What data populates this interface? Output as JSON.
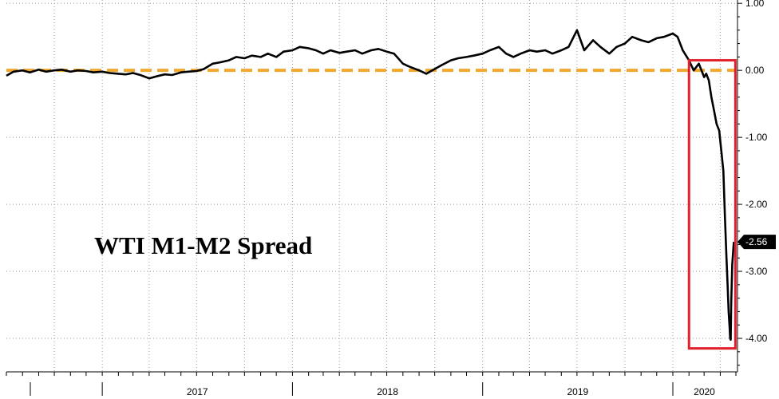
{
  "chart_data": {
    "type": "line",
    "title": "WTI M1-M2 Spread",
    "xlabel": "",
    "ylabel": "",
    "x_tick_labels": [
      "2017",
      "2018",
      "2019",
      "2020"
    ],
    "y_ticks": [
      1.0,
      0.0,
      -1.0,
      -2.0,
      -3.0,
      -4.0
    ],
    "y_tick_labels": [
      "1.00",
      "0.00",
      "-1.00",
      "-2.00",
      "-3.00",
      "-4.00"
    ],
    "ylim": [
      -4.5,
      1.05
    ],
    "xlim": [
      "2016-07",
      "2020-05"
    ],
    "grid": true,
    "last_value_label": "-2.56",
    "reference_line": {
      "y": 0.0,
      "style": "dashed",
      "color": "#f0a830"
    },
    "highlight_box": {
      "x_range": [
        "2020-02",
        "2020-04-30"
      ],
      "y_range": [
        0.15,
        -4.15
      ],
      "color": "#e0202a"
    },
    "series": [
      {
        "color": "#000000",
        "x": [
          "2016-07-01",
          "2016-07-15",
          "2016-08-01",
          "2016-08-15",
          "2016-09-01",
          "2016-09-15",
          "2016-10-01",
          "2016-10-15",
          "2016-11-01",
          "2016-11-15",
          "2016-12-01",
          "2016-12-15",
          "2017-01-01",
          "2017-01-15",
          "2017-02-01",
          "2017-02-15",
          "2017-03-01",
          "2017-03-15",
          "2017-04-01",
          "2017-04-15",
          "2017-05-01",
          "2017-05-15",
          "2017-06-01",
          "2017-06-15",
          "2017-07-01",
          "2017-07-15",
          "2017-08-01",
          "2017-08-15",
          "2017-09-01",
          "2017-09-15",
          "2017-10-01",
          "2017-10-15",
          "2017-11-01",
          "2017-11-15",
          "2017-12-01",
          "2017-12-15",
          "2018-01-01",
          "2018-01-15",
          "2018-02-01",
          "2018-02-15",
          "2018-03-01",
          "2018-03-15",
          "2018-04-01",
          "2018-04-15",
          "2018-05-01",
          "2018-05-15",
          "2018-06-01",
          "2018-06-15",
          "2018-07-01",
          "2018-07-15",
          "2018-08-01",
          "2018-08-15",
          "2018-09-01",
          "2018-09-15",
          "2018-10-01",
          "2018-10-15",
          "2018-11-01",
          "2018-11-15",
          "2018-12-01",
          "2018-12-15",
          "2019-01-01",
          "2019-01-15",
          "2019-02-01",
          "2019-02-15",
          "2019-03-01",
          "2019-03-15",
          "2019-04-01",
          "2019-04-15",
          "2019-05-01",
          "2019-05-15",
          "2019-06-01",
          "2019-06-15",
          "2019-07-01",
          "2019-07-15",
          "2019-08-01",
          "2019-08-15",
          "2019-09-01",
          "2019-09-15",
          "2019-10-01",
          "2019-10-15",
          "2019-11-01",
          "2019-11-15",
          "2019-12-01",
          "2019-12-15",
          "2020-01-01",
          "2020-01-10",
          "2020-01-20",
          "2020-02-01",
          "2020-02-10",
          "2020-02-20",
          "2020-03-01",
          "2020-03-05",
          "2020-03-10",
          "2020-03-15",
          "2020-03-20",
          "2020-03-25",
          "2020-03-30",
          "2020-04-03",
          "2020-04-07",
          "2020-04-10",
          "2020-04-13",
          "2020-04-15",
          "2020-04-17",
          "2020-04-19",
          "2020-04-20",
          "2020-04-21",
          "2020-04-22",
          "2020-04-24",
          "2020-04-27"
        ],
        "y": [
          -0.08,
          -0.02,
          0.0,
          -0.03,
          0.01,
          -0.02,
          0.0,
          0.01,
          -0.02,
          0.0,
          -0.01,
          -0.03,
          -0.02,
          -0.04,
          -0.05,
          -0.06,
          -0.04,
          -0.07,
          -0.12,
          -0.09,
          -0.06,
          -0.07,
          -0.03,
          -0.02,
          -0.01,
          0.02,
          0.1,
          0.12,
          0.15,
          0.2,
          0.18,
          0.22,
          0.2,
          0.25,
          0.2,
          0.28,
          0.3,
          0.35,
          0.33,
          0.3,
          0.25,
          0.3,
          0.26,
          0.28,
          0.3,
          0.25,
          0.3,
          0.32,
          0.28,
          0.25,
          0.1,
          0.05,
          0.0,
          -0.05,
          0.02,
          0.08,
          0.15,
          0.18,
          0.2,
          0.22,
          0.25,
          0.3,
          0.35,
          0.25,
          0.2,
          0.25,
          0.3,
          0.28,
          0.3,
          0.25,
          0.3,
          0.35,
          0.6,
          0.3,
          0.45,
          0.35,
          0.25,
          0.35,
          0.4,
          0.5,
          0.45,
          0.42,
          0.48,
          0.5,
          0.55,
          0.5,
          0.3,
          0.15,
          0.0,
          0.1,
          -0.1,
          -0.05,
          -0.15,
          -0.4,
          -0.6,
          -0.8,
          -0.9,
          -1.2,
          -1.5,
          -2.2,
          -2.8,
          -3.2,
          -3.6,
          -3.85,
          -4.0,
          -4.02,
          -3.5,
          -2.9,
          -2.56
        ]
      }
    ]
  }
}
